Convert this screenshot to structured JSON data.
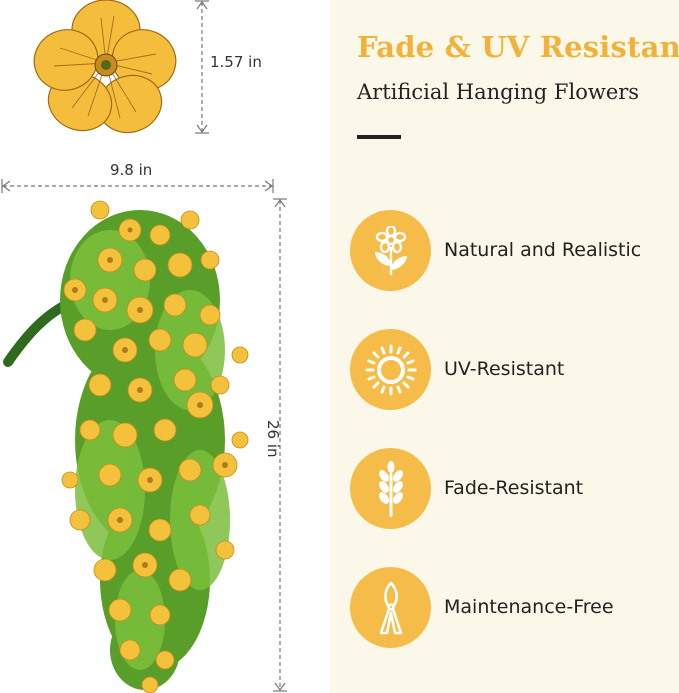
{
  "colors": {
    "accent": "#f2b23a",
    "icon_bg": "#f6bc4a",
    "panel_bg": "#fbf8ea",
    "text": "#222222"
  },
  "dimensions": {
    "flower_diameter": "1.57 in",
    "width": "9.8 in",
    "length": "26 in"
  },
  "header": {
    "title": "Fade & UV Resistant",
    "subtitle": "Artificial Hanging Flowers"
  },
  "features": [
    {
      "label": "Natural and Realistic",
      "icon": "flower-icon"
    },
    {
      "label": "UV-Resistant",
      "icon": "sun-icon"
    },
    {
      "label": "Fade-Resistant",
      "icon": "wheat-icon"
    },
    {
      "label": "Maintenance-Free",
      "icon": "pruning-shears-icon"
    }
  ]
}
